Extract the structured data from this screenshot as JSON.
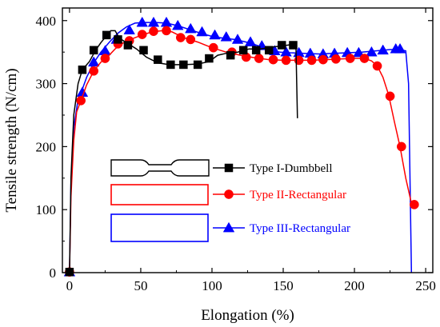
{
  "chart_data": {
    "type": "line",
    "xlabel": "Elongation (%)",
    "ylabel": "Tensile strength (N/cm)",
    "xlim": [
      -5,
      255
    ],
    "ylim": [
      0,
      420
    ],
    "xticks": [
      0,
      50,
      100,
      150,
      200,
      250
    ],
    "yticks": [
      0,
      100,
      200,
      300,
      400
    ],
    "legend_position": "center-left",
    "series": [
      {
        "name": "Type I-Dumbbell",
        "color": "#000000",
        "marker": "square",
        "line": [
          [
            0,
            0
          ],
          [
            1,
            150
          ],
          [
            3,
            250
          ],
          [
            6,
            300
          ],
          [
            9,
            322
          ],
          [
            14,
            335
          ],
          [
            18,
            352
          ],
          [
            22,
            365
          ],
          [
            26,
            376
          ],
          [
            29,
            384
          ],
          [
            32,
            384
          ],
          [
            35,
            372
          ],
          [
            40,
            365
          ],
          [
            47,
            355
          ],
          [
            54,
            342
          ],
          [
            62,
            333
          ],
          [
            70,
            330
          ],
          [
            80,
            330
          ],
          [
            90,
            331
          ],
          [
            98,
            335
          ],
          [
            104,
            345
          ],
          [
            110,
            348
          ],
          [
            118,
            350
          ],
          [
            126,
            355
          ],
          [
            134,
            355
          ],
          [
            142,
            358
          ],
          [
            150,
            360
          ],
          [
            156,
            362
          ],
          [
            159,
            355
          ],
          [
            160,
            245
          ]
        ],
        "points": [
          [
            0,
            1
          ],
          [
            9,
            322
          ],
          [
            17,
            353
          ],
          [
            26,
            377
          ],
          [
            34,
            370
          ],
          [
            41,
            361
          ],
          [
            52,
            353
          ],
          [
            62,
            338
          ],
          [
            71,
            330
          ],
          [
            80,
            330
          ],
          [
            90,
            330
          ],
          [
            98,
            340
          ],
          [
            113,
            345
          ],
          [
            122,
            353
          ],
          [
            131,
            353
          ],
          [
            140,
            353
          ],
          [
            149,
            361
          ],
          [
            157,
            361
          ]
        ]
      },
      {
        "name": "Type II-Rectangular",
        "color": "#ff0000",
        "marker": "circle",
        "line": [
          [
            0,
            0
          ],
          [
            1,
            120
          ],
          [
            3,
            210
          ],
          [
            5,
            255
          ],
          [
            8,
            273
          ],
          [
            12,
            298
          ],
          [
            17,
            320
          ],
          [
            22,
            334
          ],
          [
            27,
            343
          ],
          [
            32,
            355
          ],
          [
            38,
            365
          ],
          [
            45,
            372
          ],
          [
            52,
            378
          ],
          [
            58,
            382
          ],
          [
            65,
            384
          ],
          [
            72,
            382
          ],
          [
            80,
            373
          ],
          [
            90,
            366
          ],
          [
            100,
            357
          ],
          [
            110,
            350
          ],
          [
            120,
            345
          ],
          [
            130,
            341
          ],
          [
            140,
            338
          ],
          [
            150,
            337
          ],
          [
            160,
            337
          ],
          [
            170,
            337
          ],
          [
            180,
            338
          ],
          [
            190,
            339
          ],
          [
            200,
            340
          ],
          [
            207,
            340
          ],
          [
            212,
            336
          ],
          [
            216,
            328
          ],
          [
            220,
            310
          ],
          [
            224,
            282
          ],
          [
            228,
            240
          ],
          [
            232,
            200
          ],
          [
            236,
            150
          ],
          [
            240,
            110
          ]
        ],
        "points": [
          [
            0,
            1
          ],
          [
            8,
            273
          ],
          [
            17,
            320
          ],
          [
            25,
            340
          ],
          [
            34,
            363
          ],
          [
            42,
            368
          ],
          [
            51,
            378
          ],
          [
            59,
            383
          ],
          [
            68,
            384
          ],
          [
            78,
            373
          ],
          [
            85,
            370
          ],
          [
            101,
            357
          ],
          [
            114,
            350
          ],
          [
            124,
            342
          ],
          [
            133,
            340
          ],
          [
            143,
            338
          ],
          [
            152,
            337
          ],
          [
            161,
            337
          ],
          [
            170,
            337
          ],
          [
            178,
            338
          ],
          [
            187,
            339
          ],
          [
            197,
            340
          ],
          [
            207,
            340
          ],
          [
            216,
            328
          ],
          [
            225,
            280
          ],
          [
            233,
            200
          ],
          [
            242,
            108
          ]
        ]
      },
      {
        "name": "Type III-Rectangular",
        "color": "#0000ff",
        "marker": "triangle",
        "line": [
          [
            0,
            0
          ],
          [
            1,
            140
          ],
          [
            3,
            230
          ],
          [
            6,
            275
          ],
          [
            8,
            285
          ],
          [
            12,
            310
          ],
          [
            17,
            333
          ],
          [
            22,
            350
          ],
          [
            28,
            366
          ],
          [
            34,
            380
          ],
          [
            40,
            390
          ],
          [
            46,
            396
          ],
          [
            52,
            397
          ],
          [
            60,
            397
          ],
          [
            68,
            396
          ],
          [
            76,
            392
          ],
          [
            84,
            386
          ],
          [
            92,
            380
          ],
          [
            100,
            375
          ],
          [
            108,
            372
          ],
          [
            116,
            370
          ],
          [
            124,
            366
          ],
          [
            130,
            362
          ],
          [
            136,
            357
          ],
          [
            142,
            352
          ],
          [
            148,
            350
          ],
          [
            155,
            349
          ],
          [
            165,
            348
          ],
          [
            175,
            347
          ],
          [
            185,
            348
          ],
          [
            195,
            349
          ],
          [
            205,
            350
          ],
          [
            215,
            352
          ],
          [
            225,
            354
          ],
          [
            232,
            354
          ],
          [
            236,
            352
          ],
          [
            238,
            300
          ],
          [
            239,
            150
          ],
          [
            240,
            0
          ]
        ],
        "points": [
          [
            0,
            1
          ],
          [
            9,
            286
          ],
          [
            17,
            334
          ],
          [
            25,
            352
          ],
          [
            33,
            370
          ],
          [
            42,
            385
          ],
          [
            51,
            397
          ],
          [
            59,
            397
          ],
          [
            68,
            397
          ],
          [
            76,
            392
          ],
          [
            85,
            387
          ],
          [
            93,
            382
          ],
          [
            102,
            377
          ],
          [
            110,
            374
          ],
          [
            118,
            370
          ],
          [
            127,
            366
          ],
          [
            135,
            360
          ],
          [
            144,
            352
          ],
          [
            152,
            350
          ],
          [
            161,
            349
          ],
          [
            169,
            348
          ],
          [
            178,
            347
          ],
          [
            186,
            348
          ],
          [
            195,
            349
          ],
          [
            203,
            349
          ],
          [
            212,
            350
          ],
          [
            220,
            353
          ],
          [
            229,
            355
          ],
          [
            232,
            355
          ]
        ]
      }
    ]
  }
}
